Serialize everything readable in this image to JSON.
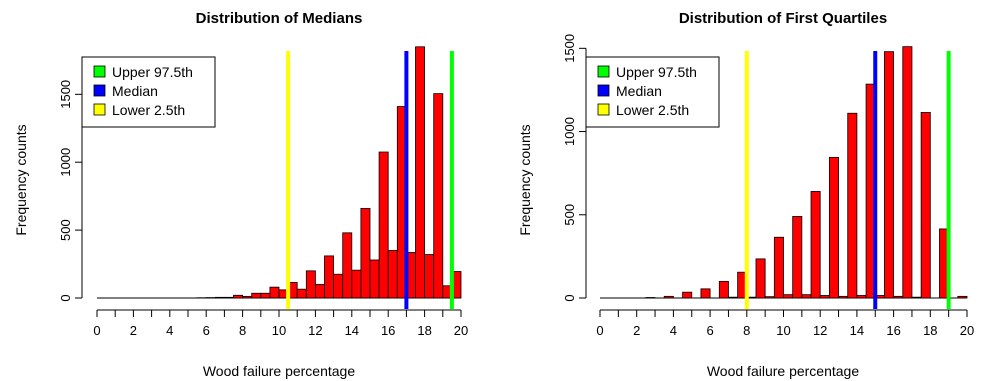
{
  "chart_data": [
    {
      "type": "bar",
      "title": "Distribution of Medians",
      "xlabel": "Wood failure percentage",
      "ylabel": "Frequency counts",
      "xlim": [
        0,
        20
      ],
      "ylim": [
        0,
        1900
      ],
      "x_ticks": [
        "0",
        "2",
        "4",
        "6",
        "8",
        "10",
        "12",
        "14",
        "16",
        "18",
        "20"
      ],
      "y_ticks": [
        "0",
        "500",
        "1000",
        "1500"
      ],
      "bin_width": 0.5,
      "bins": [
        {
          "x": 5.75,
          "y": 2
        },
        {
          "x": 6.25,
          "y": 3
        },
        {
          "x": 6.75,
          "y": 5
        },
        {
          "x": 7.25,
          "y": 5
        },
        {
          "x": 7.75,
          "y": 20
        },
        {
          "x": 8.25,
          "y": 12
        },
        {
          "x": 8.75,
          "y": 35
        },
        {
          "x": 9.25,
          "y": 35
        },
        {
          "x": 9.75,
          "y": 80
        },
        {
          "x": 10.25,
          "y": 60
        },
        {
          "x": 10.75,
          "y": 115
        },
        {
          "x": 11.25,
          "y": 65
        },
        {
          "x": 11.75,
          "y": 200
        },
        {
          "x": 12.25,
          "y": 100
        },
        {
          "x": 12.75,
          "y": 310
        },
        {
          "x": 13.25,
          "y": 175
        },
        {
          "x": 13.75,
          "y": 480
        },
        {
          "x": 14.25,
          "y": 205
        },
        {
          "x": 14.75,
          "y": 660
        },
        {
          "x": 15.25,
          "y": 280
        },
        {
          "x": 15.75,
          "y": 1075
        },
        {
          "x": 16.25,
          "y": 350
        },
        {
          "x": 16.75,
          "y": 1410
        },
        {
          "x": 17.25,
          "y": 335
        },
        {
          "x": 17.75,
          "y": 1850
        },
        {
          "x": 18.25,
          "y": 320
        },
        {
          "x": 18.75,
          "y": 1505
        },
        {
          "x": 19.25,
          "y": 90
        },
        {
          "x": 19.75,
          "y": 195
        }
      ],
      "vlines": [
        {
          "name": "Lower 2.5th",
          "x": 10.5,
          "color": "#ffff00"
        },
        {
          "name": "Median",
          "x": 17.0,
          "color": "#0000ff"
        },
        {
          "name": "Upper 97.5th",
          "x": 19.5,
          "color": "#00ff00"
        }
      ],
      "legend": [
        {
          "label": "Upper 97.5th",
          "color": "#00ff00"
        },
        {
          "label": "Median",
          "color": "#0000ff"
        },
        {
          "label": "Lower 2.5th",
          "color": "#ffff00"
        }
      ],
      "legend_position": "top-left",
      "bar_color": "#ff0000"
    },
    {
      "type": "bar",
      "title": "Distribution of First Quartiles",
      "xlabel": "Wood failure percentage",
      "ylabel": "Frequency counts",
      "xlim": [
        0,
        20
      ],
      "ylim": [
        0,
        1550
      ],
      "x_ticks": [
        "0",
        "2",
        "4",
        "6",
        "8",
        "10",
        "12",
        "14",
        "16",
        "18",
        "20"
      ],
      "y_ticks": [
        "0",
        "500",
        "1000",
        "1500"
      ],
      "bin_width": 0.5,
      "bins": [
        {
          "x": 2.75,
          "y": 3
        },
        {
          "x": 3.75,
          "y": 10
        },
        {
          "x": 4.75,
          "y": 35
        },
        {
          "x": 5.75,
          "y": 55
        },
        {
          "x": 6.75,
          "y": 100
        },
        {
          "x": 7.25,
          "y": 5
        },
        {
          "x": 7.75,
          "y": 155
        },
        {
          "x": 8.25,
          "y": 5
        },
        {
          "x": 8.75,
          "y": 235
        },
        {
          "x": 9.25,
          "y": 8
        },
        {
          "x": 9.75,
          "y": 365
        },
        {
          "x": 10.25,
          "y": 20
        },
        {
          "x": 10.75,
          "y": 490
        },
        {
          "x": 11.25,
          "y": 20
        },
        {
          "x": 11.75,
          "y": 640
        },
        {
          "x": 12.25,
          "y": 15
        },
        {
          "x": 12.75,
          "y": 845
        },
        {
          "x": 13.25,
          "y": 10
        },
        {
          "x": 13.75,
          "y": 1110
        },
        {
          "x": 14.25,
          "y": 15
        },
        {
          "x": 14.75,
          "y": 1285
        },
        {
          "x": 15.25,
          "y": 15
        },
        {
          "x": 15.75,
          "y": 1480
        },
        {
          "x": 16.25,
          "y": 10
        },
        {
          "x": 16.75,
          "y": 1510
        },
        {
          "x": 17.25,
          "y": 5
        },
        {
          "x": 17.75,
          "y": 1115
        },
        {
          "x": 18.75,
          "y": 415
        },
        {
          "x": 19.75,
          "y": 10
        }
      ],
      "vlines": [
        {
          "name": "Lower 2.5th",
          "x": 8.0,
          "color": "#ffff00"
        },
        {
          "name": "Median",
          "x": 15.0,
          "color": "#0000ff"
        },
        {
          "name": "Upper 97.5th",
          "x": 19.0,
          "color": "#00ff00"
        }
      ],
      "legend": [
        {
          "label": "Upper 97.5th",
          "color": "#00ff00"
        },
        {
          "label": "Median",
          "color": "#0000ff"
        },
        {
          "label": "Lower 2.5th",
          "color": "#ffff00"
        }
      ],
      "legend_position": "top-left",
      "bar_color": "#ff0000"
    }
  ]
}
